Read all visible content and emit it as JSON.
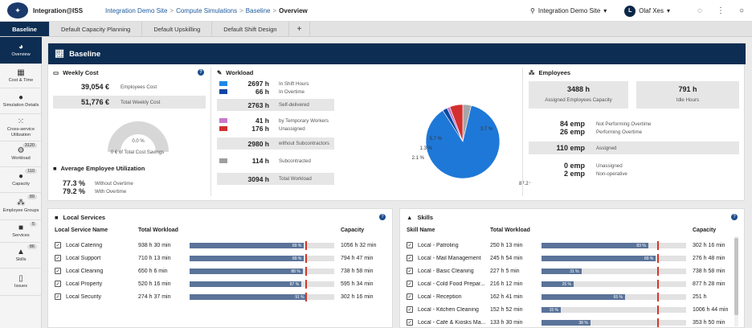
{
  "topbar": {
    "app_name": "Integration@ISS",
    "breadcrumb": [
      "Integration Demo Site",
      "Compute Simulations",
      "Baseline",
      "Overview"
    ],
    "site_selector": "Integration Demo Site",
    "user_initial": "L",
    "user_name": "Olaf Xes"
  },
  "tabs": [
    "Baseline",
    "Default Capacity Planning",
    "Default Upskilling",
    "Default Shift Design",
    "+"
  ],
  "sidebar": [
    {
      "label": "Overview",
      "icon": "dashboard-icon",
      "badge": ""
    },
    {
      "label": "Cost & Time",
      "icon": "calculator-icon",
      "badge": ""
    },
    {
      "label": "Simulation Details",
      "icon": "info-icon",
      "badge": ""
    },
    {
      "label": "Cross-service Utilization",
      "icon": "grid-icon",
      "badge": ""
    },
    {
      "label": "Workload",
      "icon": "workload-icon",
      "badge": "3120"
    },
    {
      "label": "Capacity",
      "icon": "person-icon",
      "badge": "110"
    },
    {
      "label": "Employee Groups",
      "icon": "group-icon",
      "badge": "89"
    },
    {
      "label": "Services",
      "icon": "briefcase-icon",
      "badge": "5"
    },
    {
      "label": "Skills",
      "icon": "graduation-cap-icon",
      "badge": "86"
    },
    {
      "label": "Issues",
      "icon": "document-icon",
      "badge": ""
    }
  ],
  "baseline": {
    "title": "Baseline",
    "weekly_cost": {
      "title": "Weekly Cost",
      "employees_cost_value": "39,054 €",
      "employees_cost_label": "Employees Cost",
      "total_weekly_value": "51,776 €",
      "total_weekly_label": "Total Weekly Cost",
      "gauge_percent": "0.0 %",
      "gauge_fill": 0,
      "savings_label": "0 € of Total Cost Savings"
    },
    "utilization": {
      "title": "Average Employee Utilization",
      "without_value": "77.3 %",
      "without_label": "Without Overtime",
      "with_value": "79.2 %",
      "with_label": "With Overtime"
    },
    "workload": {
      "title": "Workload",
      "rows": [
        {
          "value": "2697 h",
          "label": "In Shift Hours",
          "color": "#1e88e5"
        },
        {
          "value": "66 h",
          "label": "In Overtime",
          "color": "#0d47a1"
        },
        {
          "value": "2763 h",
          "label": "Self-delivered",
          "color": ""
        },
        {
          "value": "41 h",
          "label": "by Temporary Workers",
          "color": "#c67ac9"
        },
        {
          "value": "176 h",
          "label": "Unassigned",
          "color": "#d32f2f"
        },
        {
          "value": "2980 h",
          "label": "without Subcontractors",
          "color": ""
        },
        {
          "value": "114 h",
          "label": "Subcontracted",
          "color": "#9e9e9e"
        },
        {
          "value": "3094 h",
          "label": "Total Workload",
          "color": ""
        }
      ]
    },
    "pie": {
      "slices": [
        {
          "label": "87.2 %",
          "value": 87.2,
          "color": "#1e78d8"
        },
        {
          "label": "2.1 %",
          "value": 2.1,
          "color": "#0d47a1"
        },
        {
          "label": "1.3 %",
          "value": 1.3,
          "color": "#c67ac9"
        },
        {
          "label": "5.7 %",
          "value": 5.7,
          "color": "#d32f2f"
        },
        {
          "label": "3.7 %",
          "value": 3.7,
          "color": "#a6a6a6"
        }
      ]
    },
    "employees": {
      "title": "Employees",
      "assigned_capacity_value": "3488 h",
      "assigned_capacity_label": "Assigned Employees Capacity",
      "idle_value": "791 h",
      "idle_label": "Idle Hours",
      "not_overtime_value": "84 emp",
      "not_overtime_label": "Not Performing Overtime",
      "overtime_value": "26 emp",
      "overtime_label": "Performing Overtime",
      "assigned_value": "110 emp",
      "assigned_label": "Assigned",
      "unassigned_value": "0 emp",
      "unassigned_label": "Unassigned",
      "nonop_value": "2 emp",
      "nonop_label": "Non-operative"
    }
  },
  "local_services": {
    "title": "Local Services",
    "headers": {
      "name": "Local Service Name",
      "workload": "Total Workload",
      "capacity": "Capacity"
    },
    "rows": [
      {
        "name": "Local Catering",
        "workload": "938 h 30 min",
        "percent": "89 %",
        "fill": 0.89,
        "capacity": "1056 h 32 min"
      },
      {
        "name": "Local Support",
        "workload": "710 h 13 min",
        "percent": "89 %",
        "fill": 0.89,
        "capacity": "794 h 47 min"
      },
      {
        "name": "Local Cleaning",
        "workload": "650 h 6 min",
        "percent": "88 %",
        "fill": 0.88,
        "capacity": "738 h 58 min"
      },
      {
        "name": "Local Property",
        "workload": "520 h 16 min",
        "percent": "87 %",
        "fill": 0.87,
        "capacity": "595 h 34 min"
      },
      {
        "name": "Local Security",
        "workload": "274 h 37 min",
        "percent": "91 %",
        "fill": 0.91,
        "capacity": "302 h 16 min"
      }
    ]
  },
  "skills": {
    "title": "Skills",
    "headers": {
      "name": "Skill Name",
      "workload": "Total Workload",
      "capacity": "Capacity"
    },
    "rows": [
      {
        "name": "Local - Patroling",
        "workload": "250 h 13 min",
        "percent": "83 %",
        "fill": 0.83,
        "capacity": "302 h 16 min"
      },
      {
        "name": "Local - Mail Management",
        "workload": "245 h 54 min",
        "percent": "89 %",
        "fill": 0.89,
        "capacity": "276 h 48 min"
      },
      {
        "name": "Local - Basic Cleaning",
        "workload": "227 h 5 min",
        "percent": "31 %",
        "fill": 0.31,
        "capacity": "738 h 58 min"
      },
      {
        "name": "Local - Cold Food Prepar...",
        "workload": "216 h 12 min",
        "percent": "25 %",
        "fill": 0.25,
        "capacity": "877 h 28 min"
      },
      {
        "name": "Local - Reception",
        "workload": "162 h 41 min",
        "percent": "65 %",
        "fill": 0.65,
        "capacity": "251 h"
      },
      {
        "name": "Local - Kitchen Cleaning",
        "workload": "152 h 52 min",
        "percent": "15 %",
        "fill": 0.15,
        "capacity": "1006 h 44 min"
      },
      {
        "name": "Local - Café & Kiosks Ma...",
        "workload": "133 h 30 min",
        "percent": "38 %",
        "fill": 0.38,
        "capacity": "353 h 50 min"
      }
    ]
  }
}
